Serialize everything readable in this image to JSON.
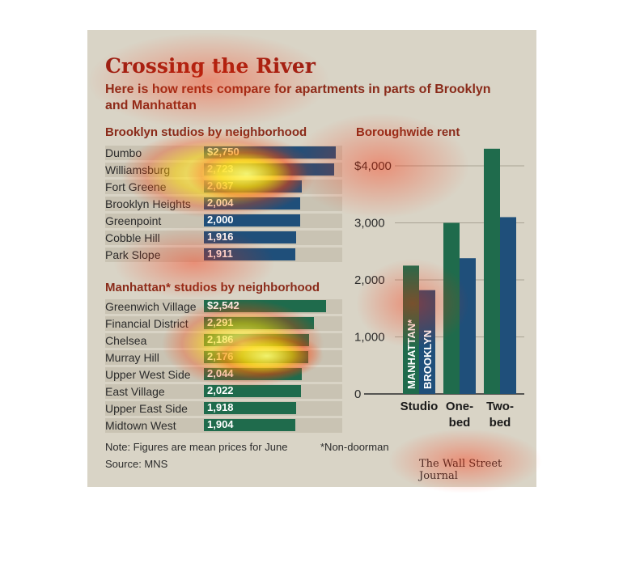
{
  "title": "Crossing the River",
  "subtitle": "Here is how rents compare for apartments in parts of Brooklyn and Manhattan",
  "colors": {
    "brooklyn": "#1f4f7a",
    "manhattan": "#1f6b4c",
    "title": "#9a1f14"
  },
  "chart_data": [
    {
      "type": "bar",
      "title": "Brooklyn studios by neighborhood",
      "categories": [
        "Dumbo",
        "Williamsburg",
        "Fort Greene",
        "Brooklyn Heights",
        "Greenpoint",
        "Cobble Hill",
        "Park Slope"
      ],
      "values": [
        2750,
        2723,
        2037,
        2004,
        2000,
        1916,
        1911
      ],
      "labels": [
        "$2,750",
        "2,723",
        "2,037",
        "2,004",
        "2,000",
        "1,916",
        "1,911"
      ],
      "orientation": "horizontal"
    },
    {
      "type": "bar",
      "title": "Manhattan* studios by neighborhood",
      "categories": [
        "Greenwich Village",
        "Financial District",
        "Chelsea",
        "Murray Hill",
        "Upper West Side",
        "East Village",
        "Upper East Side",
        "Midtown West"
      ],
      "values": [
        2542,
        2291,
        2186,
        2176,
        2044,
        2022,
        1918,
        1904
      ],
      "labels": [
        "$2,542",
        "2,291",
        "2,186",
        "2,176",
        "2,044",
        "2,022",
        "1,918",
        "1,904"
      ],
      "orientation": "horizontal"
    },
    {
      "type": "bar",
      "title": "Boroughwide rent",
      "categories": [
        "Studio",
        "One-bed",
        "Two-bed"
      ],
      "category_lines": [
        [
          "Studio"
        ],
        [
          "One-",
          "bed"
        ],
        [
          "Two-",
          "bed"
        ]
      ],
      "series": [
        {
          "name": "MANHATTAN*",
          "values": [
            2250,
            3000,
            4300
          ]
        },
        {
          "name": "BROOKLYN",
          "values": [
            1820,
            2380,
            3100
          ]
        }
      ],
      "yticks": [
        "0",
        "1,000",
        "2,000",
        "3,000",
        "$4,000"
      ],
      "ytick_values": [
        0,
        1000,
        2000,
        3000,
        4000
      ],
      "ylim": [
        0,
        4500
      ],
      "grid": true
    }
  ],
  "footer": {
    "note": "Note: Figures are mean prices for June",
    "footnote": "*Non-doorman",
    "source": "Source: MNS",
    "credit": "The Wall Street Journal"
  }
}
